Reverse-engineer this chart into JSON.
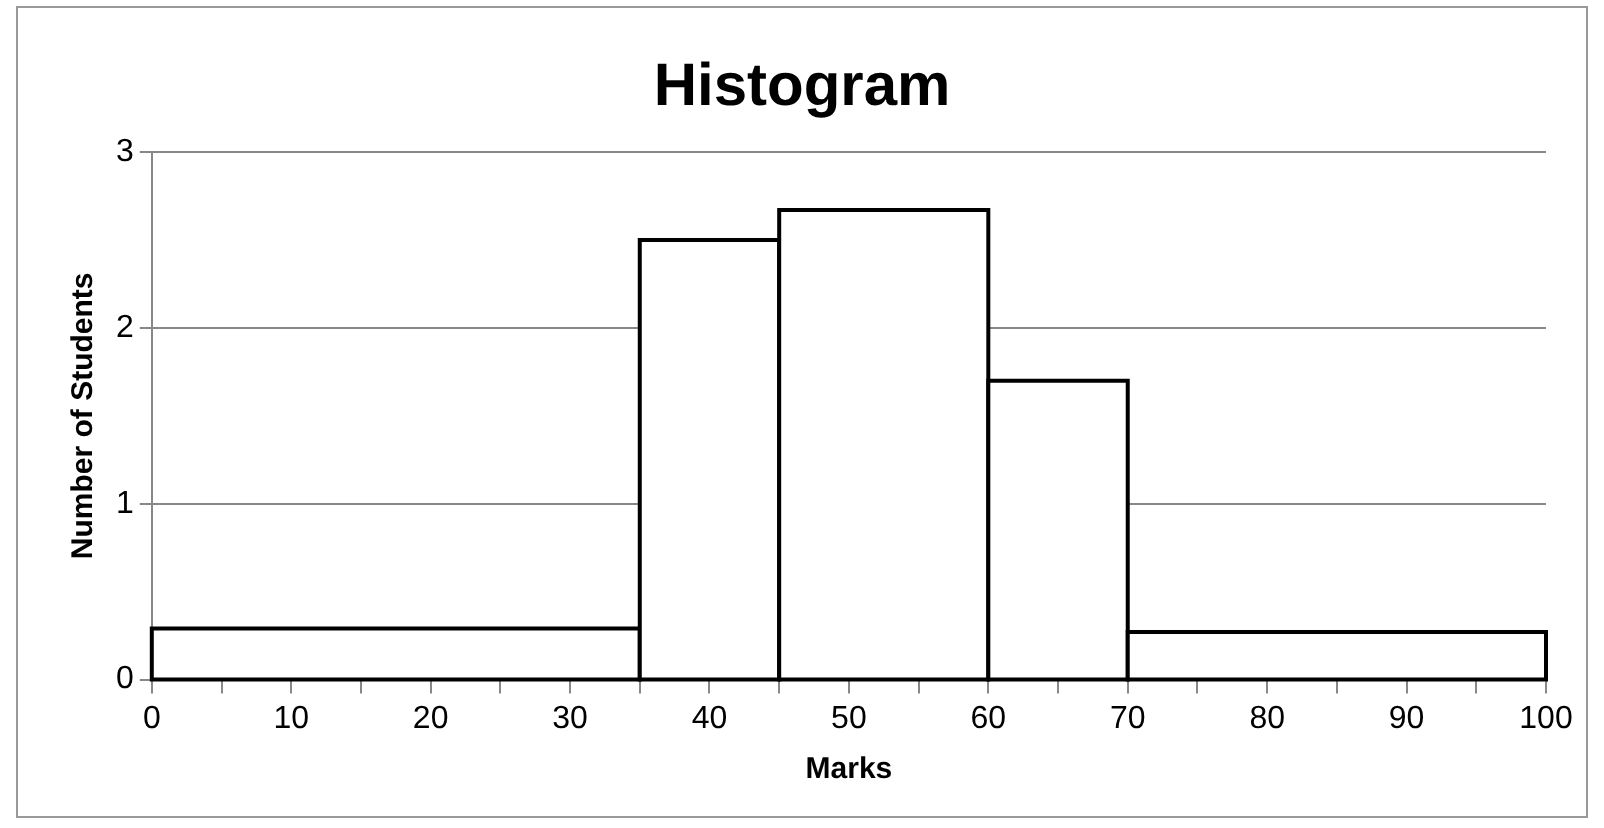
{
  "chart_data": {
    "type": "histogram",
    "title": "Histogram",
    "xlabel": "Marks",
    "ylabel": "Number of Students",
    "bins": [
      0,
      35,
      45,
      60,
      70,
      100
    ],
    "values": [
      0.29,
      2.5,
      2.67,
      1.7,
      0.27
    ],
    "color": "#ffffff",
    "xlim": [
      0,
      100
    ],
    "xticks": [
      0,
      {
        "value": 5,
        "label": null
      },
      10,
      {
        "value": 15,
        "label": null
      },
      20,
      {
        "value": 25,
        "label": null
      },
      30,
      {
        "value": 35,
        "label": null
      },
      40,
      {
        "value": 45,
        "label": null
      },
      50,
      {
        "value": 55,
        "label": null
      },
      60,
      {
        "value": 65,
        "label": null
      },
      70,
      {
        "value": 75,
        "label": null
      },
      80,
      {
        "value": 85,
        "label": null
      },
      90,
      {
        "value": 95,
        "label": null
      },
      100
    ],
    "ylim": [
      0,
      3
    ],
    "yticks": [
      0,
      1,
      2,
      3
    ],
    "grid": "y"
  }
}
